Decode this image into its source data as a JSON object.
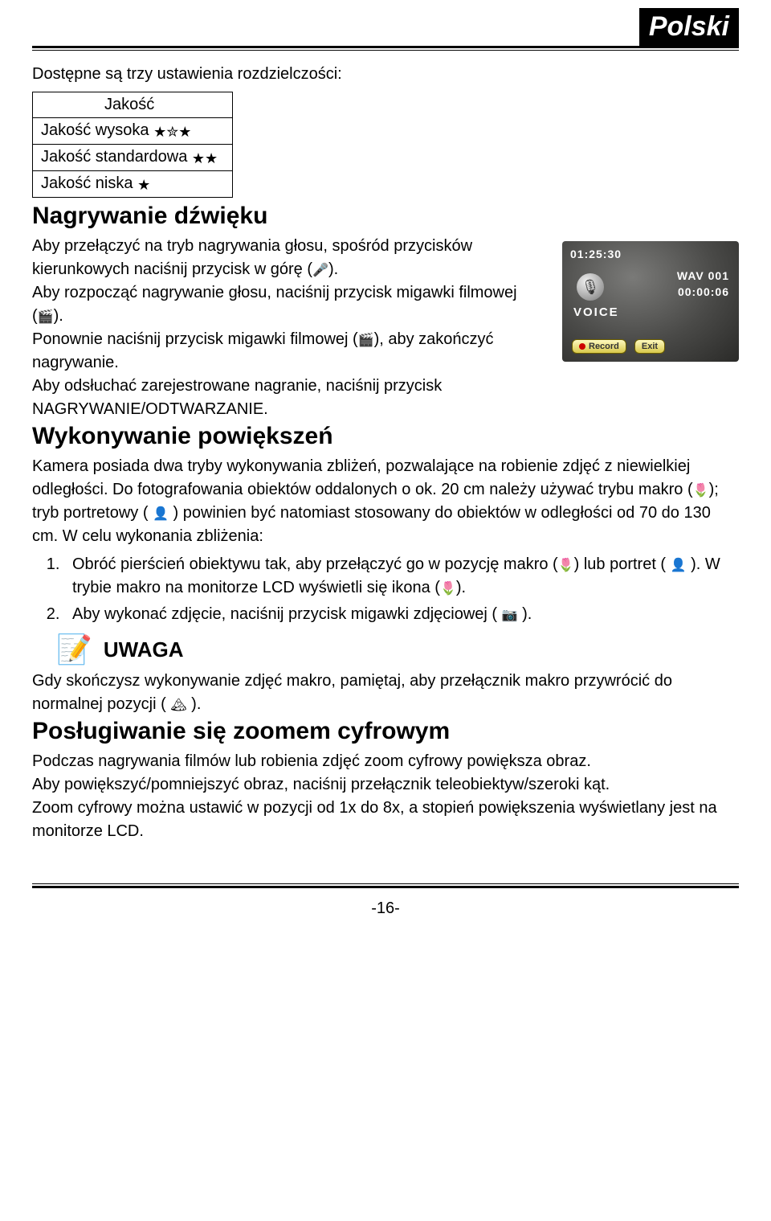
{
  "lang_label": "Polski",
  "intro_resolution": "Dostępne są trzy ustawienia rozdzielczości:",
  "quality": {
    "header": "Jakość",
    "high": "Jakość wysoka",
    "standard": "Jakość standardowa",
    "low": "Jakość niska",
    "high_stars": "★✮★",
    "standard_stars": "★★",
    "low_stars": "★"
  },
  "h_audio": "Nagrywanie dźwięku",
  "audio": {
    "p1a": "Aby przełączyć na tryb nagrywania głosu, spośród przycisków kierunkowych naciśnij przycisk w górę (",
    "p1_icon": "🎤",
    "p1b": ").",
    "p2a": "Aby rozpocząć nagrywanie głosu, naciśnij przycisk migawki filmowej (",
    "p2_icon": "🎬",
    "p2b": ").",
    "p3a": "Ponownie naciśnij przycisk migawki filmowej (",
    "p3_icon": "🎬",
    "p3b": "), aby zakończyć nagrywanie.",
    "p4": "Aby odsłuchać zarejestrowane nagranie, naciśnij przycisk NAGRYWANIE/ODTWARZANIE."
  },
  "voice_screen": {
    "total": "01:25:30",
    "wav": "WAV 001",
    "elapsed": "00:00:06",
    "voice_label": "VOICE",
    "record": "Record",
    "exit": "Exit",
    "bg_gradient": "#4a4a48",
    "btn_bg": "#d8c84a"
  },
  "h_zoom_closeup": "Wykonywanie powiększeń",
  "closeup": {
    "para_a": "Kamera posiada dwa tryby wykonywania zbliżeń, pozwalające na robienie zdjęć z niewielkiej odległości. Do fotografowania obiektów oddalonych o ok. 20 cm należy używać trybu makro (",
    "macro_icon": "🌷",
    "para_b": "); tryb portretowy ( ",
    "portrait_icon": "👤",
    "para_c": " ) powinien być natomiast stosowany do obiektów w odległości od 70 do 130 cm. W celu wykonania zbliżenia:",
    "step1a": "Obróć pierścień obiektywu tak, aby przełączyć go w pozycję makro (",
    "step1b": ") lub portret ( ",
    "step1c": " ). W trybie makro na monitorze LCD wyświetli się ikona (",
    "step1d": ").",
    "step2a": "Aby wykonać zdjęcie, naciśnij przycisk migawki zdjęciowej ( ",
    "cam_icon": "📷",
    "step2b": " )."
  },
  "note": {
    "label": "UWAGA",
    "text_a": "Gdy skończysz wykonywanie zdjęć makro, pamiętaj, aby przełącznik makro przywrócić do normalnej pozycji ( ",
    "mountain_icon": "🏔",
    "text_b": " )."
  },
  "h_digital_zoom": "Posługiwanie się zoomem cyfrowym",
  "digital_zoom": {
    "p1": "Podczas nagrywania filmów lub robienia zdjęć zoom cyfrowy powiększa obraz.",
    "p2": "Aby powiększyć/pomniejszyć obraz, naciśnij przełącznik teleobiektyw/szeroki kąt.",
    "p3": "Zoom cyfrowy można ustawić w pozycji od 1x do 8x, a stopień powiększenia wyświetlany jest na monitorze LCD."
  },
  "page_number": "-16-"
}
